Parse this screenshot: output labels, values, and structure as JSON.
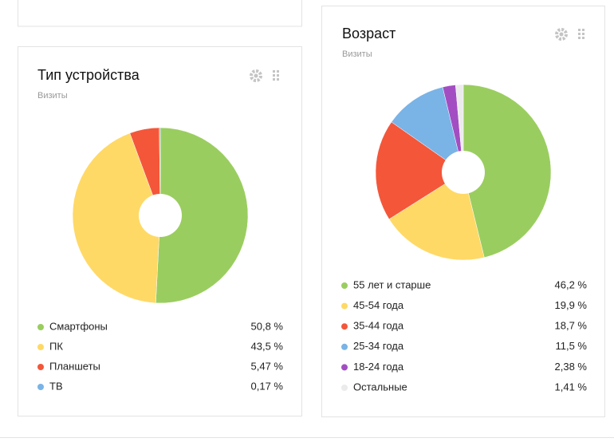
{
  "chart_data": [
    {
      "type": "pie",
      "title": "Тип устройства",
      "subtitle": "Визиты",
      "categories": [
        "Смартфоны",
        "ПК",
        "Планшеты",
        "ТВ"
      ],
      "values": [
        50.8,
        43.5,
        5.47,
        0.17
      ],
      "value_labels": [
        "50,8 %",
        "43,5 %",
        "5,47 %",
        "0,17 %"
      ],
      "colors": [
        "#9acd5f",
        "#ffd966",
        "#f4563a",
        "#7ab3e6"
      ]
    },
    {
      "type": "pie",
      "title": "Возраст",
      "subtitle": "Визиты",
      "categories": [
        "55 лет и старше",
        "45-54 года",
        "35-44 года",
        "25-34 года",
        "18-24 года",
        "Остальные"
      ],
      "values": [
        46.2,
        19.9,
        18.7,
        11.5,
        2.38,
        1.41
      ],
      "value_labels": [
        "46,2 %",
        "19,9 %",
        "18,7 %",
        "11,5 %",
        "2,38 %",
        "1,41 %"
      ],
      "colors": [
        "#9acd5f",
        "#ffd966",
        "#f4563a",
        "#7ab3e6",
        "#a24ec2",
        "#ebebeb"
      ]
    }
  ]
}
